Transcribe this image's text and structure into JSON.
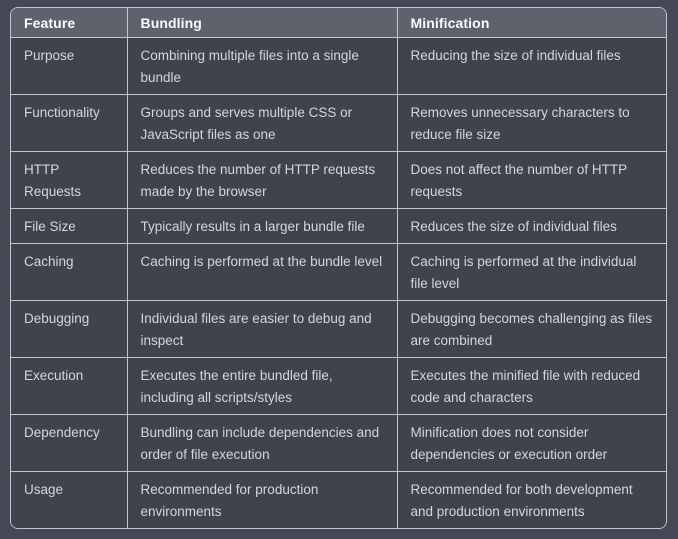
{
  "theme": {
    "page_bg": "#464955",
    "cell_bg": "#3f434c",
    "header_bg": "#5f626d",
    "border": "#c3c6cc",
    "header_text": "#fafbfc",
    "body_text": "#d3d6dc"
  },
  "table": {
    "columns": [
      "Feature",
      "Bundling",
      "Minification"
    ],
    "rows": [
      [
        "Purpose",
        "Combining multiple files into a single bundle",
        "Reducing the size of individual files"
      ],
      [
        "Functionality",
        "Groups and serves multiple CSS or JavaScript files as one",
        "Removes unnecessary characters to reduce file size"
      ],
      [
        "HTTP Requests",
        "Reduces the number of HTTP requests made by the browser",
        "Does not affect the number of HTTP requests"
      ],
      [
        "File Size",
        "Typically results in a larger bundle file",
        "Reduces the size of individual files"
      ],
      [
        "Caching",
        "Caching is performed at the bundle level",
        "Caching is performed at the individual file level"
      ],
      [
        "Debugging",
        "Individual files are easier to debug and inspect",
        "Debugging becomes challenging as files are combined"
      ],
      [
        "Execution",
        "Executes the entire bundled file, including all scripts/styles",
        "Executes the minified file with reduced code and characters"
      ],
      [
        "Dependency",
        "Bundling can include dependencies and order of file execution",
        "Minification does not consider dependencies or execution order"
      ],
      [
        "Usage",
        "Recommended for production environments",
        "Recommended for both development and production environments"
      ]
    ]
  }
}
